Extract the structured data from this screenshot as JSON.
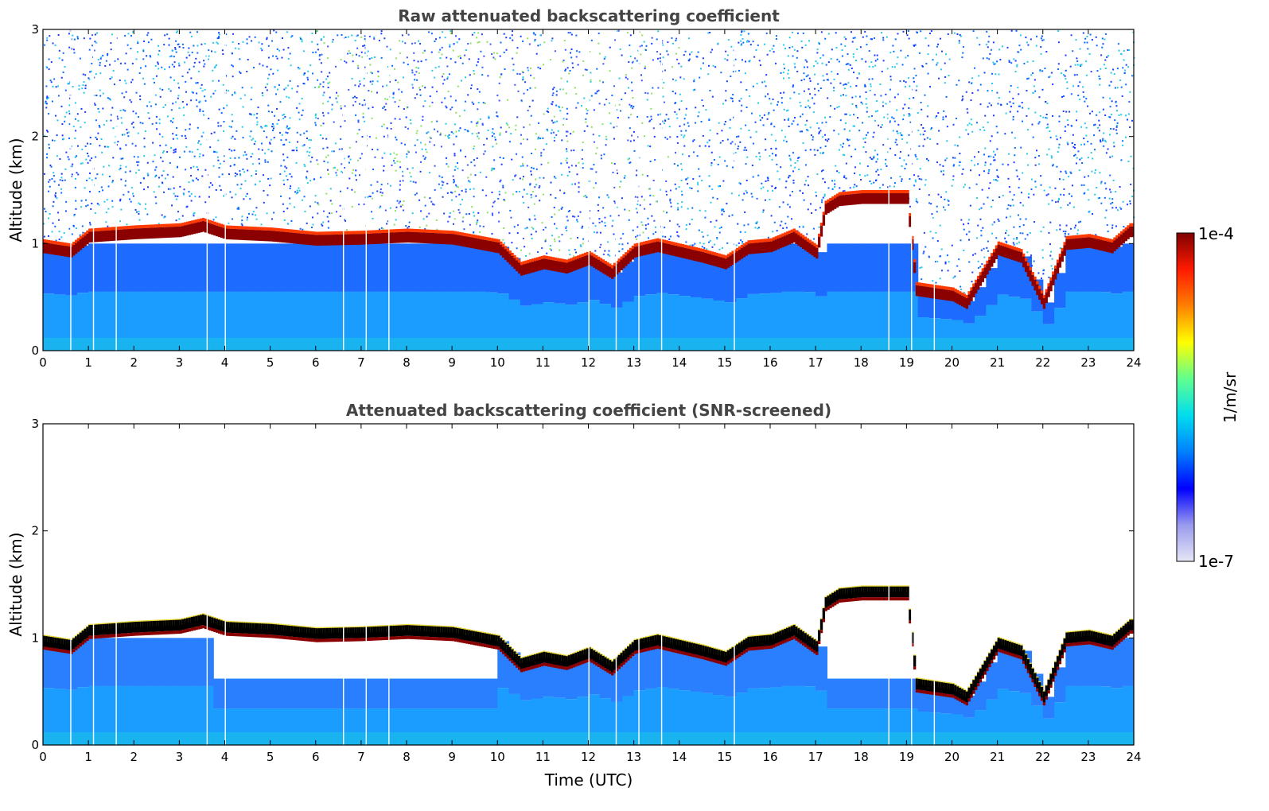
{
  "chart_data": [
    {
      "type": "heatmap",
      "title": "Raw attenuated backscattering coefficient",
      "xlabel": "",
      "ylabel": "Altitude (km)",
      "xlim": [
        0,
        24
      ],
      "ylim": [
        0,
        3
      ],
      "xticks": [
        0,
        1,
        2,
        3,
        4,
        5,
        6,
        7,
        8,
        9,
        10,
        11,
        12,
        13,
        14,
        15,
        16,
        17,
        18,
        19,
        20,
        21,
        22,
        23,
        24
      ],
      "yticks": [
        0,
        1,
        2,
        3
      ],
      "screened": false,
      "series": [
        {
          "name": "cloud base",
          "x": [
            0,
            0.6,
            1.0,
            2.0,
            3.0,
            3.5,
            4.0,
            5.0,
            6.0,
            7.0,
            8.0,
            9.0,
            10.0,
            10.5,
            11.0,
            11.5,
            12.0,
            12.5,
            13.0,
            13.5,
            14.0,
            14.5,
            15.0,
            15.5,
            16.0,
            16.5,
            17.0,
            17.2,
            17.5,
            18.0,
            19.0,
            19.2,
            20.0,
            20.3,
            21.0,
            21.5,
            22.0,
            22.5,
            23.0,
            23.5,
            23.9
          ],
          "y": [
            0.97,
            0.93,
            1.07,
            1.1,
            1.12,
            1.17,
            1.1,
            1.08,
            1.04,
            1.05,
            1.07,
            1.05,
            0.97,
            0.76,
            0.82,
            0.78,
            0.86,
            0.73,
            0.93,
            0.98,
            0.93,
            0.88,
            0.82,
            0.96,
            0.98,
            1.07,
            0.92,
            1.33,
            1.41,
            1.43,
            1.43,
            0.57,
            0.52,
            0.45,
            0.95,
            0.88,
            0.45,
            1.0,
            1.02,
            0.97,
            1.12
          ]
        }
      ]
    },
    {
      "type": "heatmap",
      "title": "Attenuated backscattering coefficient (SNR-screened)",
      "xlabel": "Time (UTC)",
      "ylabel": "Altitude (km)",
      "xlim": [
        0,
        24
      ],
      "ylim": [
        0,
        3
      ],
      "xticks": [
        0,
        1,
        2,
        3,
        4,
        5,
        6,
        7,
        8,
        9,
        10,
        11,
        12,
        13,
        14,
        15,
        16,
        17,
        18,
        19,
        20,
        21,
        22,
        23,
        24
      ],
      "yticks": [
        0,
        1,
        2,
        3
      ],
      "screened": true,
      "series": [
        {
          "name": "cloud base",
          "x": [
            0,
            0.6,
            1.0,
            2.0,
            3.0,
            3.5,
            4.0,
            5.0,
            6.0,
            7.0,
            8.0,
            9.0,
            10.0,
            10.5,
            11.0,
            11.5,
            12.0,
            12.5,
            13.0,
            13.5,
            14.0,
            14.5,
            15.0,
            15.5,
            16.0,
            16.5,
            17.0,
            17.2,
            17.5,
            18.0,
            19.0,
            19.2,
            20.0,
            20.3,
            21.0,
            21.5,
            22.0,
            22.5,
            23.0,
            23.5,
            23.9
          ],
          "y": [
            0.97,
            0.93,
            1.07,
            1.1,
            1.12,
            1.17,
            1.1,
            1.08,
            1.04,
            1.05,
            1.07,
            1.05,
            0.97,
            0.76,
            0.82,
            0.78,
            0.86,
            0.73,
            0.93,
            0.98,
            0.93,
            0.88,
            0.82,
            0.96,
            0.98,
            1.07,
            0.92,
            1.33,
            1.41,
            1.43,
            1.43,
            0.57,
            0.52,
            0.45,
            0.95,
            0.88,
            0.45,
            1.0,
            1.02,
            0.97,
            1.12
          ]
        }
      ]
    }
  ],
  "colorbar": {
    "label": "1/m/sr",
    "max_label": "1e-4",
    "min_label": "1e-7",
    "colormap": "jet",
    "colors": [
      "#e6e6f5",
      "#9999ee",
      "#0000ff",
      "#0080ff",
      "#00ddee",
      "#60ff90",
      "#ffff00",
      "#ff8000",
      "#ff1a00",
      "#7f0000"
    ]
  },
  "gaps_utc": [
    0.6,
    1.1,
    1.6,
    3.6,
    4.0,
    6.6,
    7.1,
    7.6,
    12.0,
    12.6,
    13.1,
    13.6,
    15.2,
    18.6,
    19.1,
    19.6
  ]
}
